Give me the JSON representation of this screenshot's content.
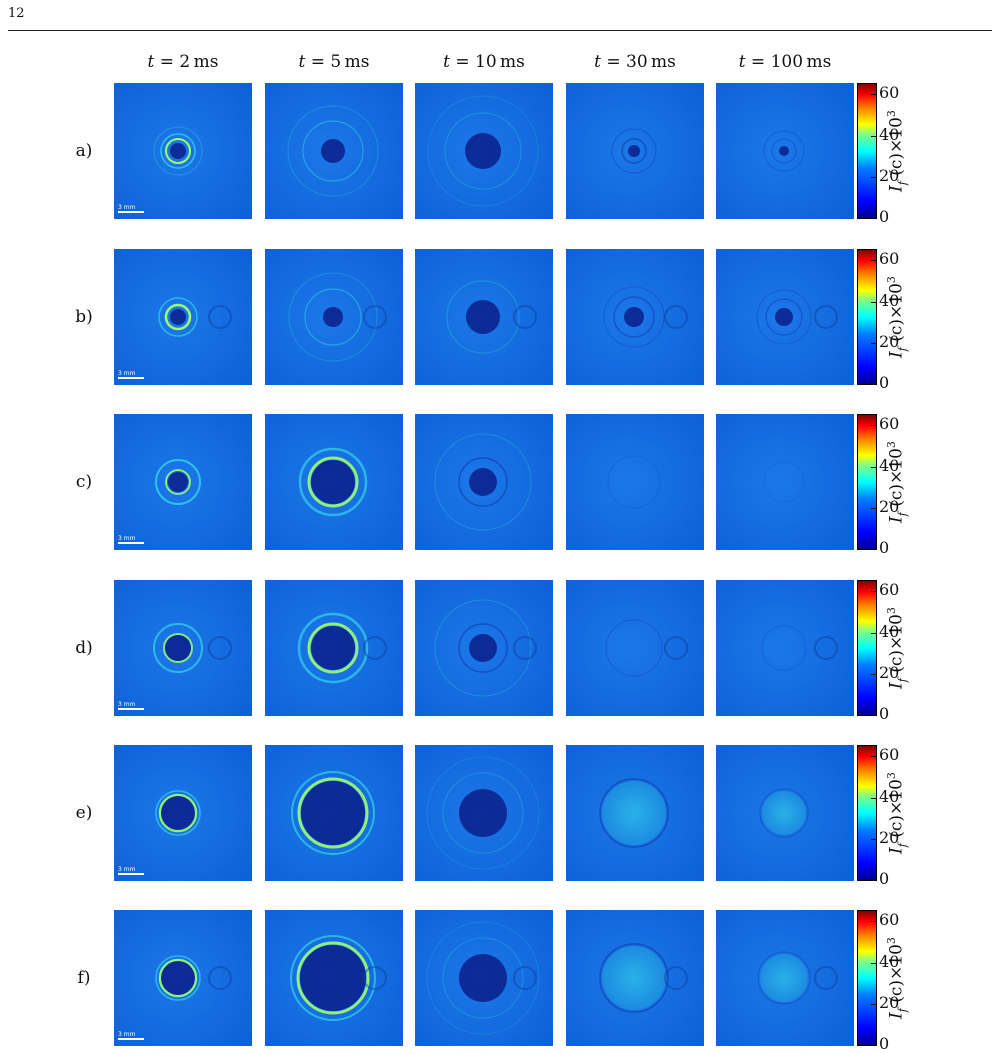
{
  "page_number": "12",
  "columns": [
    {
      "var": "t",
      "eq": " = ",
      "val": "2",
      "unit": "ms"
    },
    {
      "var": "t",
      "eq": " = ",
      "val": "5",
      "unit": "ms"
    },
    {
      "var": "t",
      "eq": " = ",
      "val": "10",
      "unit": "ms"
    },
    {
      "var": "t",
      "eq": " = ",
      "val": "30",
      "unit": "ms"
    },
    {
      "var": "t",
      "eq": " = ",
      "val": "100",
      "unit": "ms"
    }
  ],
  "rows": [
    {
      "label": "a)",
      "scale": "3 mm"
    },
    {
      "label": "b)",
      "scale": "3 mm"
    },
    {
      "label": "c)",
      "scale": "3 mm"
    },
    {
      "label": "d)",
      "scale": "3 mm"
    },
    {
      "label": "e)",
      "scale": "3 mm"
    },
    {
      "label": "f)",
      "scale": "3 mm"
    }
  ],
  "colorbar": {
    "ticks": [
      "60",
      "40",
      "20",
      "0"
    ],
    "tick_values": [
      60,
      40,
      20,
      0
    ],
    "range": [
      0,
      65
    ],
    "title_main": "I",
    "title_sub": "f",
    "title_mid": " (c)×10",
    "title_sup": "3"
  },
  "colors": {
    "panel_bg": "#0d5fd6",
    "panel_dark": "#0a1f8a",
    "ring_cyan": "#33d6e8",
    "ring_green": "#9cff6a"
  }
}
